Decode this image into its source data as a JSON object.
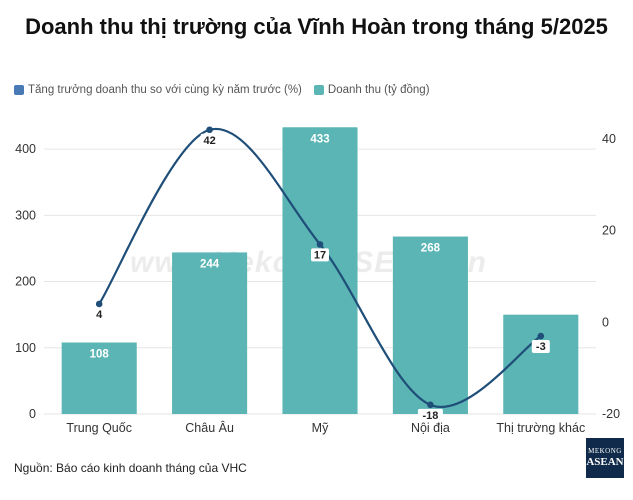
{
  "title": "Doanh thu thị trường của Vĩnh Hoàn trong tháng 5/2025",
  "legend": {
    "line_label": "Tăng trưởng doanh thu so với cùng kỳ năm trước (%)",
    "bar_label": "Doanh thu (tỷ đồng)"
  },
  "source": "Nguồn: Báo cáo kinh doanh tháng của VHC",
  "watermark": "www.MekongASEAN.vn",
  "logo": {
    "line1": "MEKONG",
    "line2": "ASEAN"
  },
  "colors": {
    "bar": "#5ab5b4",
    "line": "#1f4e79",
    "line_legend": "#4a7ab5",
    "grid": "#e6e6e6"
  },
  "chart_data": {
    "type": "bar",
    "categories": [
      "Trung Quốc",
      "Châu Âu",
      "Mỹ",
      "Nội địa",
      "Thị trường khác"
    ],
    "series": [
      {
        "name": "Doanh thu (tỷ đồng)",
        "type": "bar",
        "axis": "left",
        "values": [
          108,
          244,
          433,
          268,
          150
        ],
        "labels": [
          "108",
          "244",
          "433",
          "268",
          ""
        ]
      },
      {
        "name": "Tăng trưởng doanh thu so với cùng kỳ năm trước (%)",
        "type": "line",
        "axis": "right",
        "values": [
          4,
          42,
          17,
          -18,
          -3
        ],
        "labels": [
          "4",
          "42",
          "17",
          "-18",
          "-3"
        ]
      }
    ],
    "y_left": {
      "min": 0,
      "max": 450,
      "ticks": [
        0,
        100,
        200,
        300,
        400
      ]
    },
    "y_right": {
      "min": -20,
      "max": 45,
      "ticks": [
        -20,
        0,
        20,
        40
      ]
    },
    "grid": true,
    "legend_position": "top-left"
  }
}
